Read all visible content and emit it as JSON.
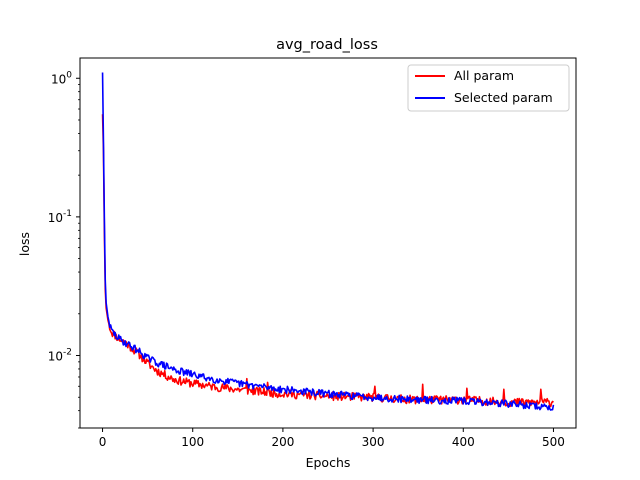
{
  "chart_data": {
    "type": "line",
    "title": "avg_road_loss",
    "xlabel": "Epochs",
    "ylabel": "loss",
    "xlim": [
      -25,
      525
    ],
    "ylim": [
      0.003,
      1.4
    ],
    "yscale": "log",
    "x_ticks": [
      0,
      100,
      200,
      300,
      400,
      500
    ],
    "x_tick_labels": [
      "0",
      "100",
      "200",
      "300",
      "400",
      "500"
    ],
    "y_ticks": [
      1,
      0.1,
      0.01
    ],
    "y_tick_labels": [
      "10^0",
      "10^-1",
      "10^-2"
    ],
    "grid": false,
    "legend_position": "upper right",
    "x_range": [
      0,
      500
    ],
    "series": [
      {
        "name": "All param",
        "color": "#ff0000",
        "points": [
          [
            0,
            0.55
          ],
          [
            1,
            0.3
          ],
          [
            2,
            0.08
          ],
          [
            3,
            0.03
          ],
          [
            4,
            0.022
          ],
          [
            6,
            0.018
          ],
          [
            8,
            0.016
          ],
          [
            10,
            0.0148
          ],
          [
            15,
            0.0138
          ],
          [
            20,
            0.013
          ],
          [
            25,
            0.0125
          ],
          [
            30,
            0.0117
          ],
          [
            40,
            0.0103
          ],
          [
            50,
            0.0088
          ],
          [
            60,
            0.0078
          ],
          [
            70,
            0.0072
          ],
          [
            80,
            0.0067
          ],
          [
            100,
            0.0063
          ],
          [
            120,
            0.006
          ],
          [
            150,
            0.0057
          ],
          [
            200,
            0.0053
          ],
          [
            250,
            0.0051
          ],
          [
            300,
            0.005
          ],
          [
            350,
            0.0048
          ],
          [
            400,
            0.0048
          ],
          [
            450,
            0.0046
          ],
          [
            500,
            0.0046
          ]
        ],
        "noise": 0.07,
        "seed": 11,
        "spikes": [
          [
            160,
            0.0068
          ],
          [
            183,
            0.0064
          ],
          [
            302,
            0.006
          ],
          [
            355,
            0.0062
          ],
          [
            404,
            0.0058
          ],
          [
            445,
            0.0057
          ],
          [
            486,
            0.0057
          ]
        ]
      },
      {
        "name": "Selected param",
        "color": "#0000ff",
        "points": [
          [
            0,
            1.1
          ],
          [
            1,
            0.35
          ],
          [
            2,
            0.1
          ],
          [
            3,
            0.035
          ],
          [
            4,
            0.024
          ],
          [
            6,
            0.019
          ],
          [
            8,
            0.0165
          ],
          [
            10,
            0.0152
          ],
          [
            15,
            0.0138
          ],
          [
            20,
            0.013
          ],
          [
            25,
            0.0124
          ],
          [
            30,
            0.0119
          ],
          [
            40,
            0.0108
          ],
          [
            50,
            0.0096
          ],
          [
            60,
            0.0089
          ],
          [
            70,
            0.0084
          ],
          [
            80,
            0.0079
          ],
          [
            100,
            0.0073
          ],
          [
            120,
            0.0068
          ],
          [
            150,
            0.0063
          ],
          [
            200,
            0.0057
          ],
          [
            250,
            0.0053
          ],
          [
            300,
            0.005
          ],
          [
            350,
            0.0048
          ],
          [
            400,
            0.0047
          ],
          [
            450,
            0.0045
          ],
          [
            500,
            0.0042
          ]
        ],
        "noise": 0.06,
        "seed": 29,
        "spikes": []
      }
    ]
  }
}
